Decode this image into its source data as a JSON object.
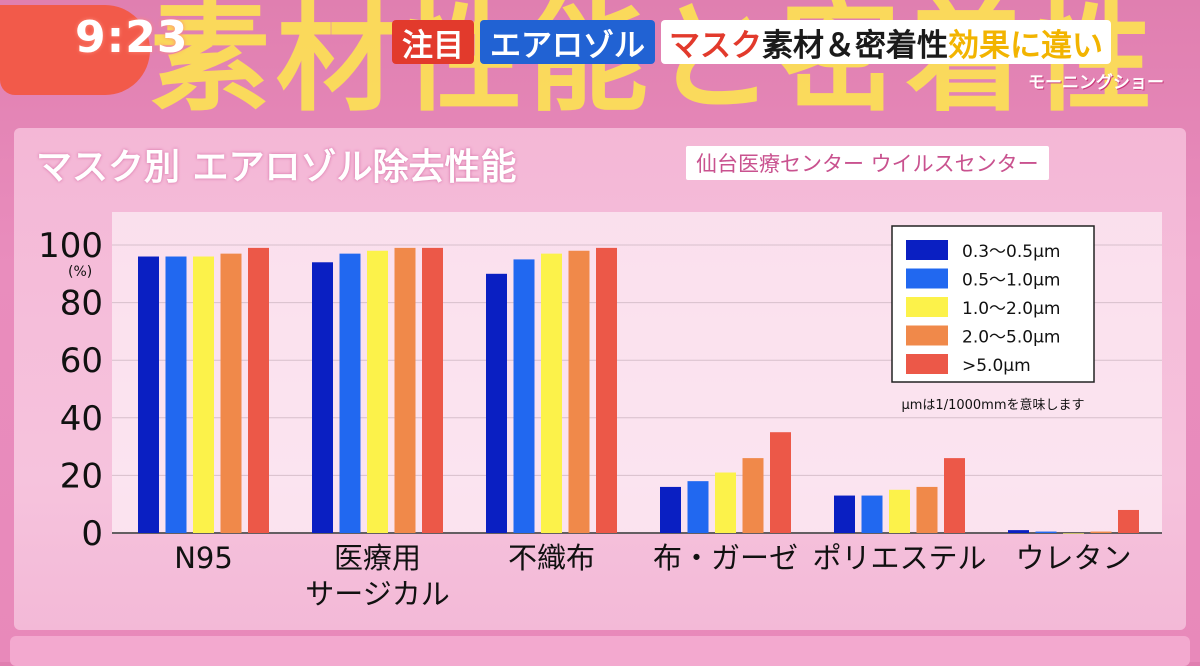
{
  "header": {
    "background_text": "素材性能と密着性",
    "clock": "9:23",
    "tags": [
      {
        "text": "注目",
        "style": "red"
      },
      {
        "text": "エアロゾル",
        "style": "blue"
      }
    ],
    "headline_part1": "マスク",
    "headline_part2": "素材＆密着性",
    "headline_part3": "効果に違い",
    "program": "モーニングショー"
  },
  "panel": {
    "title": "マスク別 エアロゾル除去性能",
    "source": "仙台医療センター ウイルスセンター"
  },
  "chart_data": {
    "type": "bar",
    "categories": [
      [
        "N95"
      ],
      [
        "医療用",
        "サージカル"
      ],
      [
        "不織布"
      ],
      [
        "布・ガーゼ"
      ],
      [
        "ポリエステル"
      ],
      [
        "ウレタン"
      ]
    ],
    "series": [
      {
        "name": "0.3〜0.5μm",
        "color": "#0a1fc2",
        "values": [
          96,
          94,
          90,
          16,
          13,
          1
        ]
      },
      {
        "name": "0.5〜1.0μm",
        "color": "#2168f0",
        "values": [
          96,
          97,
          95,
          18,
          13,
          0.5
        ]
      },
      {
        "name": "1.0〜2.0μm",
        "color": "#fcf24a",
        "values": [
          96,
          98,
          97,
          21,
          15,
          0
        ]
      },
      {
        "name": "2.0〜5.0μm",
        "color": "#f0894a",
        "values": [
          97,
          99,
          98,
          26,
          16,
          0.5
        ]
      },
      {
        "name": ">5.0μm",
        "color": "#ec5848",
        "values": [
          99,
          99,
          99,
          35,
          26,
          8
        ]
      }
    ],
    "ylim": [
      0,
      100
    ],
    "yticks": [
      0,
      20,
      40,
      60,
      80,
      100
    ],
    "ylabel": "(%)",
    "legend_position": "top-right",
    "note": "μmは1/1000mmを意味します",
    "grid": true
  }
}
